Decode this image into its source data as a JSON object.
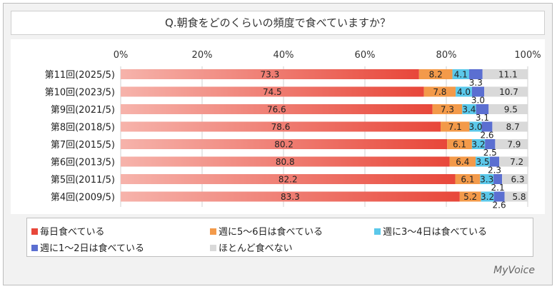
{
  "title": "Q.朝食をどのくらいの頻度で食べていますか？",
  "brand": "MyVoice",
  "colors": [
    "#e8473a",
    "#f39a4a",
    "#5bc8ea",
    "#5b6fd1",
    "#d9d9d9"
  ],
  "chart_data": {
    "type": "bar",
    "orientation": "horizontal",
    "stacked": true,
    "xlim": [
      0,
      100
    ],
    "x_ticks": [
      "0%",
      "20%",
      "40%",
      "60%",
      "80%",
      "100%"
    ],
    "categories": [
      "第11回(2025/5)",
      "第10回(2023/5)",
      "第9回(2021/5)",
      "第8回(2018/5)",
      "第7回(2015/5)",
      "第6回(2013/5)",
      "第5回(2011/5)",
      "第4回(2009/5)"
    ],
    "series": [
      {
        "name": "毎日食べている",
        "values": [
          73.3,
          74.5,
          76.6,
          78.6,
          80.2,
          80.8,
          82.2,
          83.3
        ]
      },
      {
        "name": "週に5～6日は食べている",
        "values": [
          8.2,
          7.8,
          7.3,
          7.1,
          6.1,
          6.4,
          6.1,
          5.2
        ]
      },
      {
        "name": "週に3～4日は食べている",
        "values": [
          4.1,
          4.0,
          3.4,
          3.0,
          3.2,
          3.5,
          3.3,
          3.2
        ]
      },
      {
        "name": "週に1～2日は食べている",
        "values": [
          3.3,
          3.0,
          3.1,
          2.6,
          2.5,
          2.3,
          2.1,
          2.6
        ]
      },
      {
        "name": "ほとんど食べない",
        "values": [
          11.1,
          10.7,
          9.5,
          8.7,
          7.9,
          7.2,
          6.3,
          5.8
        ]
      }
    ],
    "grid": true,
    "legend_position": "bottom"
  }
}
